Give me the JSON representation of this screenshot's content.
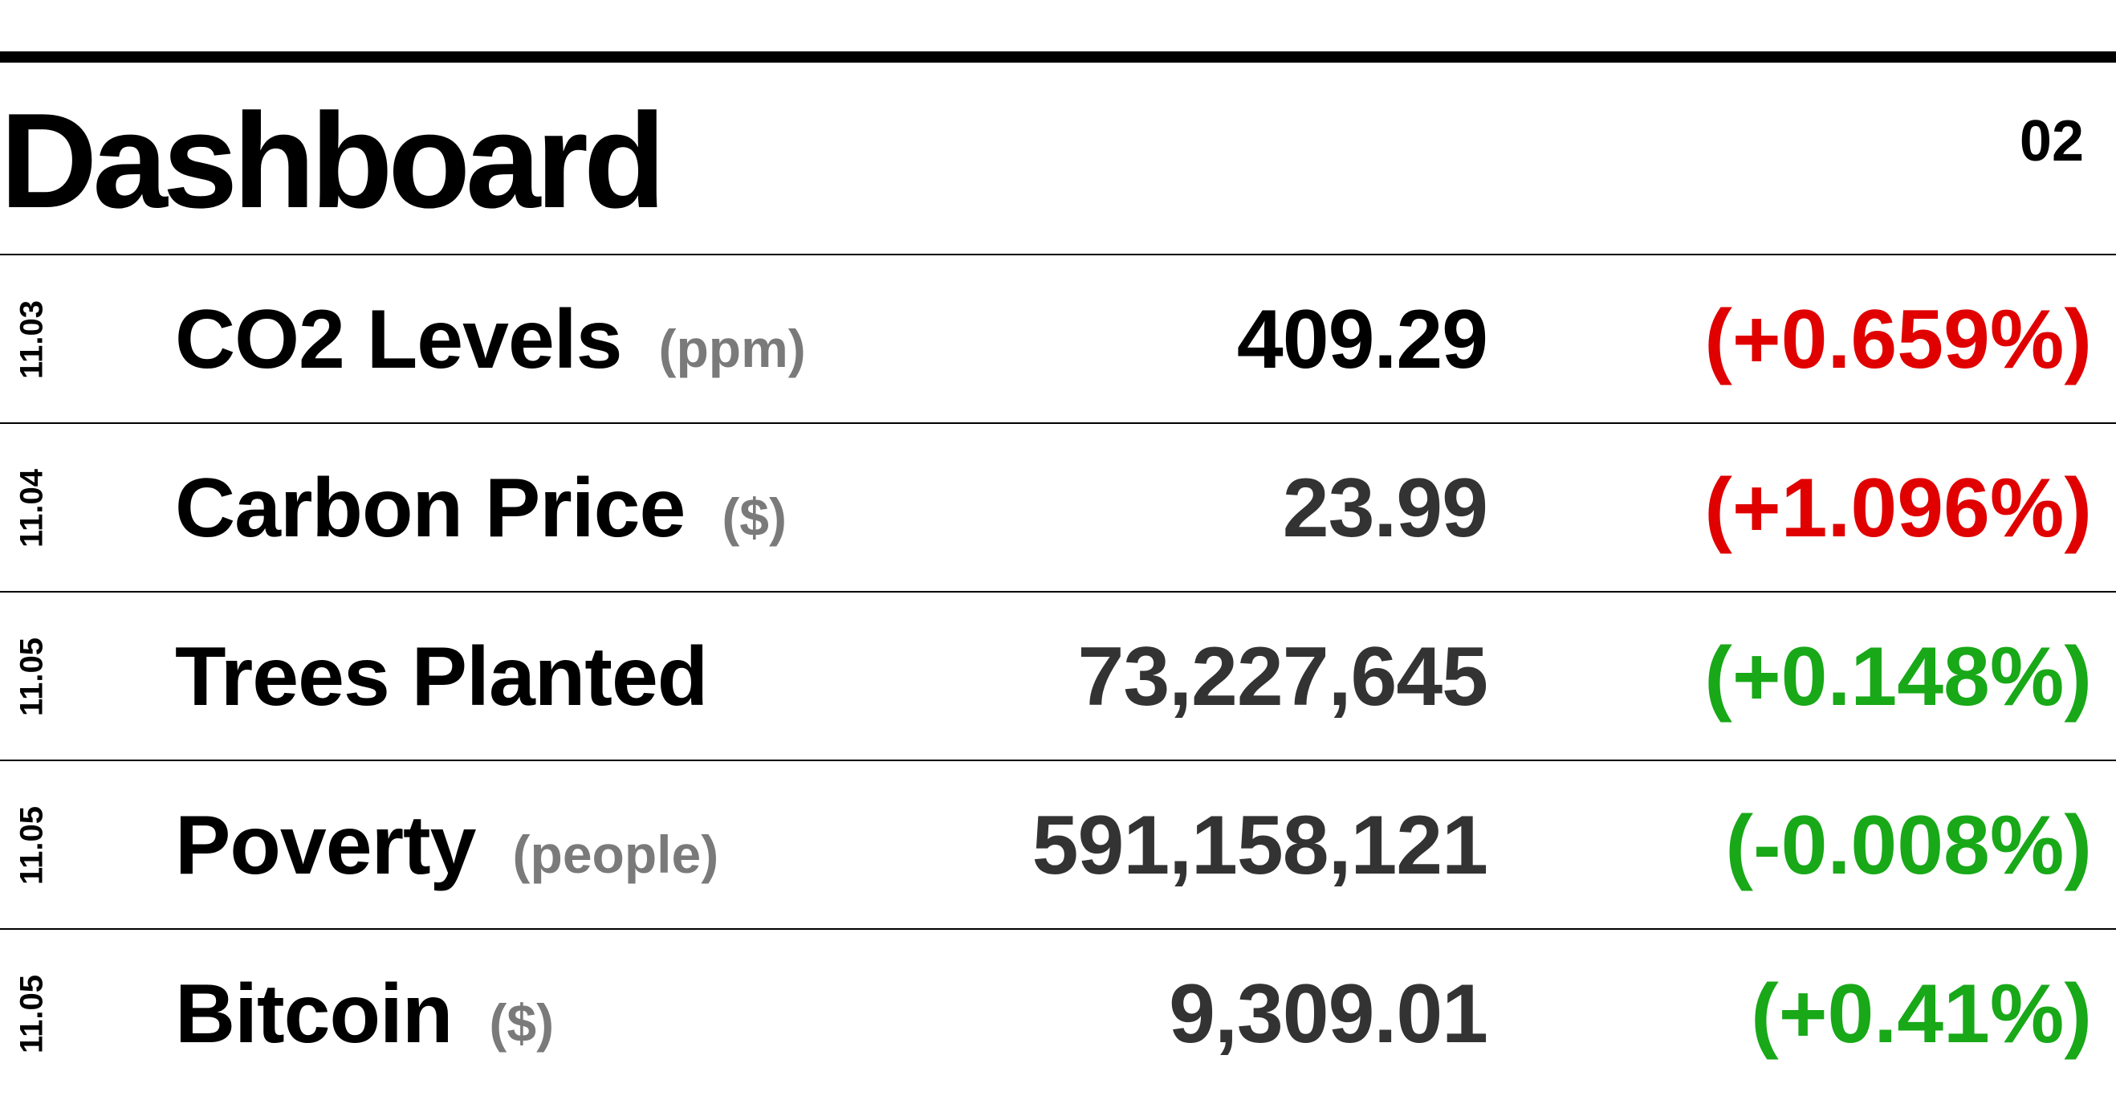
{
  "header": {
    "title": "Dashboard",
    "page_number": "02"
  },
  "colors": {
    "up": "#e00000",
    "down": "#18a818",
    "unit": "#7a7a7a"
  },
  "rows": [
    {
      "date": "11.03",
      "name": "CO2 Levels",
      "unit": "(ppm)",
      "value": "409.29",
      "change": "(+0.659%)",
      "change_color": "#e00000"
    },
    {
      "date": "11.04",
      "name": "Carbon Price",
      "unit": "($)",
      "value": "23.99",
      "change": "(+1.096%)",
      "change_color": "#e00000"
    },
    {
      "date": "11.05",
      "name": "Trees Planted",
      "unit": "",
      "value": "73,227,645",
      "change": "(+0.148%)",
      "change_color": "#18a818"
    },
    {
      "date": "11.05",
      "name": "Poverty",
      "unit": "(people)",
      "value": "591,158,121",
      "change": "(-0.008%)",
      "change_color": "#18a818"
    },
    {
      "date": "11.05",
      "name": "Bitcoin",
      "unit": "($)",
      "value": "9,309.01",
      "change": "(+0.41%)",
      "change_color": "#18a818"
    }
  ]
}
